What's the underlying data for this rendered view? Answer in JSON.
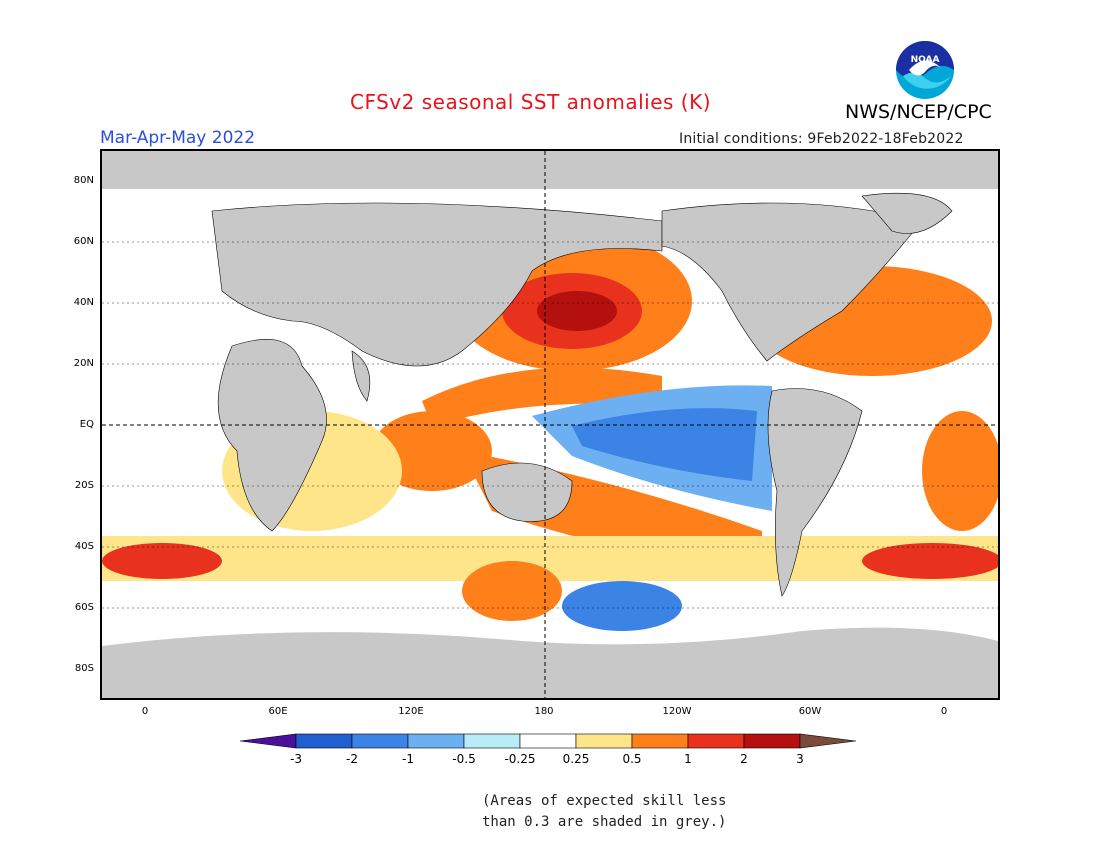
{
  "header": {
    "title": "CFSv2 seasonal SST anomalies (K)",
    "agency": "NWS/NCEP/CPC",
    "season": "Mar-Apr-May 2022",
    "initial_conditions": "Initial conditions: 9Feb2022-18Feb2022",
    "logo_text": "NOAA"
  },
  "axes": {
    "lat_labels": [
      "80N",
      "60N",
      "40N",
      "20N",
      "EQ",
      "20S",
      "40S",
      "60S",
      "80S"
    ],
    "lon_labels": [
      "0",
      "60E",
      "120E",
      "180",
      "120W",
      "60W",
      "0"
    ]
  },
  "colorbar": {
    "labels": [
      "-3",
      "-2",
      "-1",
      "-0.5",
      "-0.25",
      "0.25",
      "0.5",
      "1",
      "2",
      "3"
    ],
    "colors": [
      "#4a0f9c",
      "#1f5fcf",
      "#3b84e6",
      "#6cb0f2",
      "#b8ecf7",
      "#ffffff",
      "#ffe58a",
      "#ff7f1a",
      "#e8321e",
      "#b3100e",
      "#7a4a3a"
    ],
    "skill_mask_color": "#c8c8c8",
    "land_color": "#c8c8c8"
  },
  "note": {
    "line1": "(Areas of expected skill less",
    "line2": "than 0.3 are shaded in grey.)"
  }
}
